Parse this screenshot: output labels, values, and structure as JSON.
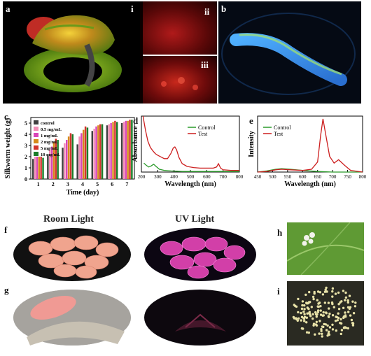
{
  "panels": {
    "a": "a",
    "i": "i",
    "ii": "ii",
    "iii": "iii",
    "b": "b",
    "c": "c",
    "d": "d",
    "e": "e",
    "f": "f",
    "g": "g",
    "h": "h",
    "i2": "i"
  },
  "captions": {
    "room_light": "Room Light",
    "uv_light": "UV Light"
  },
  "colors": {
    "ctrl": "#404040",
    "c05": "#f28db5",
    "c1": "#d946b8",
    "c2": "#d68a1a",
    "c5": "#d3332c",
    "c10": "#1b7d2a",
    "control_line": "#2a9a2a",
    "test_line": "#cc1f1f"
  },
  "chart_data": [
    {
      "type": "bar",
      "panel": "c",
      "xlabel": "Time (day)",
      "ylabel": "Silkworm weight (g)",
      "categories": [
        "1",
        "2",
        "3",
        "4",
        "5",
        "6",
        "7"
      ],
      "ylim": [
        0,
        5.5
      ],
      "yticks": [
        "0",
        "1",
        "2",
        "3",
        "4",
        "5"
      ],
      "legend_position": "top-left",
      "series": [
        {
          "name": "control",
          "values": [
            1.8,
            2.1,
            2.8,
            3.1,
            4.3,
            4.8,
            5.0
          ]
        },
        {
          "name": "0.5 mg/mL",
          "values": [
            2.0,
            2.6,
            3.2,
            3.8,
            4.5,
            4.9,
            5.1
          ]
        },
        {
          "name": "1 mg/mL",
          "values": [
            2.0,
            2.9,
            3.5,
            4.1,
            4.7,
            5.0,
            5.2
          ]
        },
        {
          "name": "2 mg/mL",
          "values": [
            2.0,
            3.3,
            3.8,
            4.4,
            4.8,
            5.1,
            5.2
          ]
        },
        {
          "name": "5 mg/mL",
          "values": [
            2.0,
            3.6,
            4.1,
            4.7,
            4.9,
            5.2,
            5.3
          ]
        },
        {
          "name": "10 mg/mL",
          "values": [
            1.9,
            3.5,
            4.0,
            4.6,
            4.9,
            5.1,
            5.3
          ]
        }
      ]
    },
    {
      "type": "line",
      "panel": "d",
      "xlabel": "Wavelength (nm)",
      "ylabel": "Absorbance",
      "xticks": [
        "200",
        "300",
        "400",
        "500",
        "600",
        "700",
        "800"
      ],
      "xlim": [
        200,
        800
      ],
      "ylim": [
        0,
        1
      ],
      "legend_position": "top-right",
      "series": [
        {
          "name": "Control",
          "x": [
            215,
            230,
            245,
            260,
            275,
            290,
            310,
            340,
            380,
            450,
            550,
            650,
            800
          ],
          "y": [
            0.16,
            0.12,
            0.09,
            0.11,
            0.14,
            0.1,
            0.05,
            0.03,
            0.02,
            0.01,
            0.01,
            0.01,
            0.01
          ]
        },
        {
          "name": "Test",
          "x": [
            210,
            225,
            240,
            255,
            270,
            285,
            300,
            320,
            340,
            360,
            380,
            395,
            405,
            415,
            430,
            450,
            480,
            520,
            560,
            600,
            640,
            660,
            672,
            685,
            700,
            750,
            800
          ],
          "y": [
            1.0,
            0.75,
            0.55,
            0.44,
            0.38,
            0.33,
            0.3,
            0.27,
            0.24,
            0.24,
            0.33,
            0.43,
            0.45,
            0.4,
            0.26,
            0.15,
            0.1,
            0.08,
            0.07,
            0.07,
            0.07,
            0.09,
            0.15,
            0.07,
            0.04,
            0.03,
            0.03
          ]
        }
      ]
    },
    {
      "type": "line",
      "panel": "e",
      "xlabel": "Wavelength (nm)",
      "ylabel": "Intensity",
      "xticks": [
        "450",
        "500",
        "550",
        "600",
        "650",
        "700",
        "750",
        "800"
      ],
      "xlim": [
        450,
        800
      ],
      "ylim": [
        0,
        1
      ],
      "legend_position": "top-left",
      "series": [
        {
          "name": "Control",
          "x": [
            450,
            480,
            510,
            530,
            560,
            600,
            650,
            700,
            800
          ],
          "y": [
            0.0,
            0.02,
            0.05,
            0.06,
            0.05,
            0.03,
            0.01,
            0.0,
            0.0
          ]
        },
        {
          "name": "Test",
          "x": [
            450,
            480,
            510,
            530,
            560,
            600,
            630,
            650,
            660,
            668,
            676,
            690,
            705,
            720,
            740,
            760,
            800
          ],
          "y": [
            0.0,
            0.01,
            0.04,
            0.05,
            0.04,
            0.03,
            0.05,
            0.18,
            0.65,
            0.95,
            0.7,
            0.28,
            0.16,
            0.22,
            0.12,
            0.03,
            0.0
          ]
        }
      ]
    }
  ]
}
